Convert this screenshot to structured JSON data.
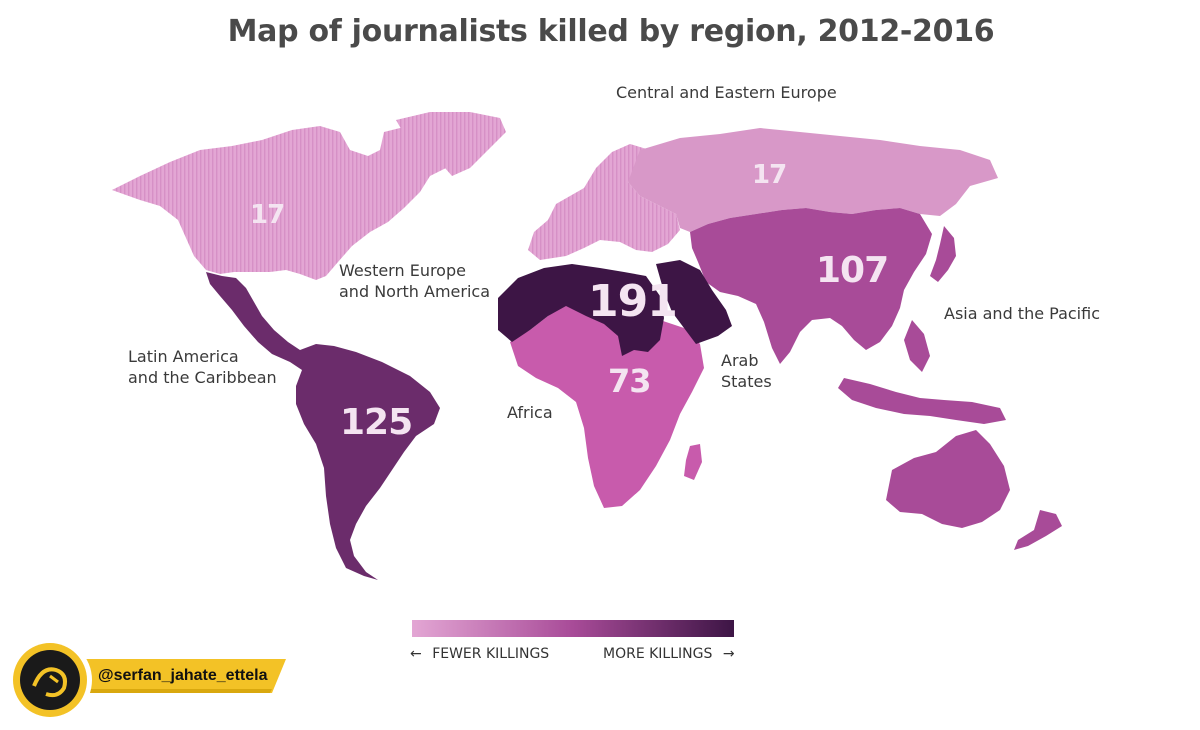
{
  "title": "Map of journalists killed by region, 2012-2016",
  "regions": {
    "central_eastern_europe": {
      "name": "Central and Eastern Europe",
      "count": "17",
      "color": "#d898c8"
    },
    "western_europe_north_america": {
      "name_line1": "Western Europe",
      "name_line2": "and North America",
      "count": "17",
      "color": "#e3a6d4"
    },
    "latin_america": {
      "name_line1": "Latin America",
      "name_line2": "and the Caribbean",
      "count": "125",
      "color": "#6b2c6b"
    },
    "africa": {
      "name": "Africa",
      "count": "73",
      "color": "#c85bac"
    },
    "arab_states": {
      "name_line1": "Arab",
      "name_line2": "States",
      "count": "191",
      "color": "#3d1545"
    },
    "asia_pacific": {
      "name": "Asia and the Pacific",
      "count": "107",
      "color": "#a84b98"
    }
  },
  "legend": {
    "fewer": "FEWER KILLINGS",
    "more": "MORE KILLINGS",
    "color_low": "#e3a6d4",
    "color_high": "#3d1545"
  },
  "watermark": {
    "handle": "@serfan_jahate_ettela",
    "badge_color": "#f3c226"
  }
}
